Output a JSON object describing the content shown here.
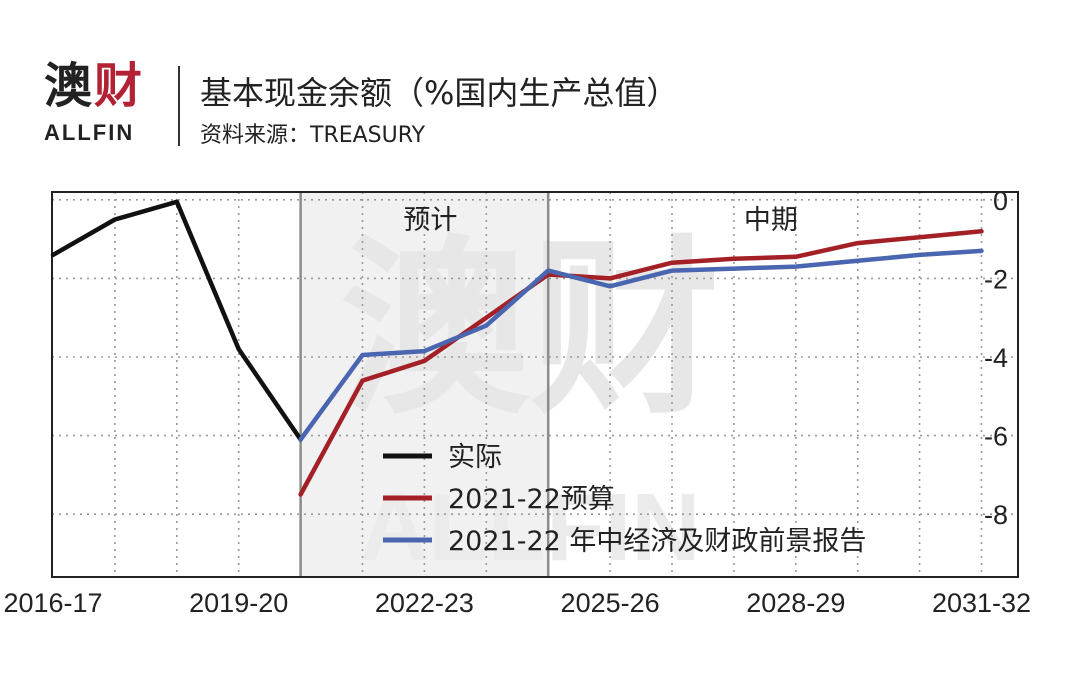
{
  "header": {
    "logo_cn_1": "澳",
    "logo_cn_2": "财",
    "logo_en": "ALLFIN",
    "title": "基本现金余额（%国内生产总值）",
    "source": "资料来源：TREASURY"
  },
  "colors": {
    "actual": "#111111",
    "budget": "#a32126",
    "myefo": "#4a66b0",
    "shade": "#f1f1f1",
    "grid": "#9a9a9a"
  },
  "chart_data": {
    "type": "line",
    "title": "基本现金余额（%国内生产总值）",
    "xlabel": "",
    "ylabel": "",
    "x_tick_labels": [
      "2016-17",
      "2019-20",
      "2022-23",
      "2025-26",
      "2028-29",
      "2031-32"
    ],
    "y_ticks": [
      0,
      -2,
      -4,
      -6,
      -8
    ],
    "ylim": [
      -9.6,
      0.2
    ],
    "xlim": [
      2016,
      2031.5
    ],
    "grid": true,
    "region_labels": [
      {
        "label": "预计",
        "x": 2022
      },
      {
        "label": "中期",
        "x": 2027.5
      }
    ],
    "shaded_range": [
      2020,
      2024
    ],
    "divider_x": [
      2020,
      2024
    ],
    "legend": [
      "实际",
      "2021-22预算",
      "2021-22 年中经济及财政前景报告"
    ],
    "legend_position": "bottom-center",
    "series": [
      {
        "name": "实际",
        "color_key": "actual",
        "points": [
          [
            2016,
            -1.4
          ],
          [
            2017,
            -0.5
          ],
          [
            2018,
            -0.05
          ],
          [
            2019,
            -3.8
          ],
          [
            2020,
            -6.1
          ]
        ]
      },
      {
        "name": "2021-22预算",
        "color_key": "budget",
        "points": [
          [
            2020,
            -7.5
          ],
          [
            2021,
            -4.6
          ],
          [
            2022,
            -4.1
          ],
          [
            2023,
            -3.0
          ],
          [
            2024,
            -1.9
          ],
          [
            2025,
            -2.0
          ],
          [
            2026,
            -1.6
          ],
          [
            2027,
            -1.5
          ],
          [
            2028,
            -1.45
          ],
          [
            2029,
            -1.1
          ],
          [
            2030,
            -0.95
          ],
          [
            2031,
            -0.8
          ]
        ]
      },
      {
        "name": "2021-22 年中经济及财政前景报告",
        "color_key": "myefo",
        "points": [
          [
            2020,
            -6.1
          ],
          [
            2021,
            -3.95
          ],
          [
            2022,
            -3.85
          ],
          [
            2023,
            -3.2
          ],
          [
            2024,
            -1.8
          ],
          [
            2025,
            -2.2
          ],
          [
            2026,
            -1.8
          ],
          [
            2027,
            -1.75
          ],
          [
            2028,
            -1.7
          ],
          [
            2029,
            -1.55
          ],
          [
            2030,
            -1.4
          ],
          [
            2031,
            -1.3
          ]
        ]
      }
    ]
  }
}
